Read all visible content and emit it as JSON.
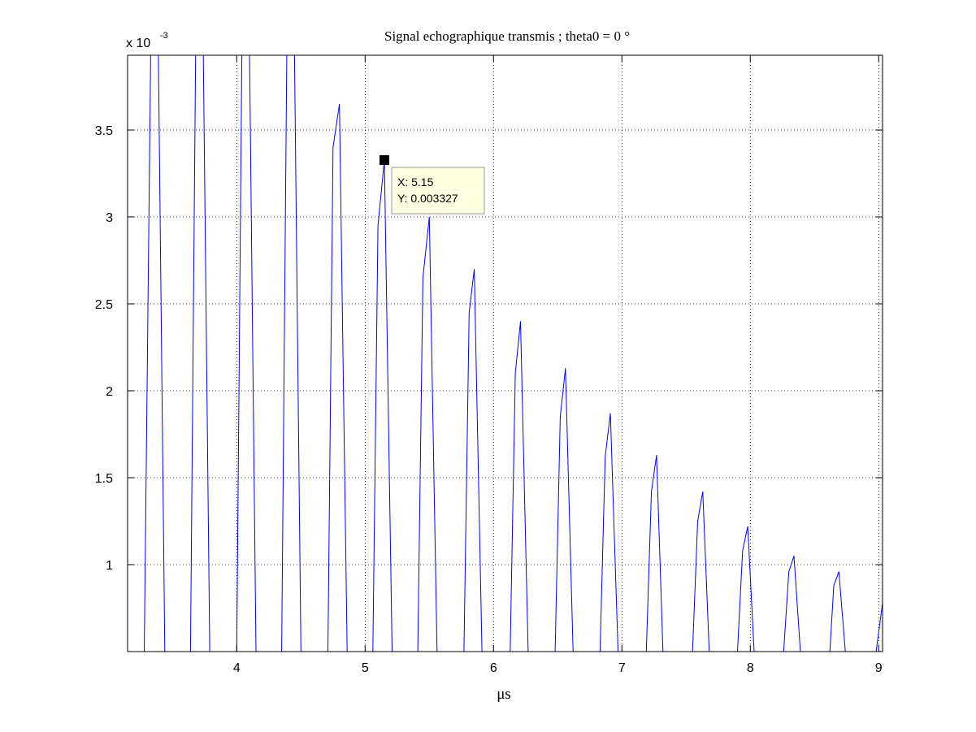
{
  "chart_data": {
    "type": "line",
    "title": "Signal echographique transmis  ; theta0 = 0 °",
    "xlabel": "μs",
    "ylabel": "",
    "y_exponent_label": "x 10",
    "y_exponent_power": "-3",
    "xlim": [
      3.15,
      9.03
    ],
    "ylim": [
      0.5,
      3.93
    ],
    "y_scale_note": "y values in units of 10^-3",
    "xticks": [
      4,
      5,
      6,
      7,
      8,
      9
    ],
    "xtick_labels": [
      "4",
      "5",
      "6",
      "7",
      "8",
      "9"
    ],
    "yticks": [
      1,
      1.5,
      2,
      2.5,
      3,
      3.5
    ],
    "ytick_labels": [
      "1",
      "1.5",
      "2",
      "2.5",
      "3",
      "3.5"
    ],
    "grid": true,
    "series": [
      {
        "color": "#0000ff",
        "x": [
          3.28,
          3.33,
          3.39,
          3.44,
          3.64,
          3.68,
          3.74,
          3.79,
          4.0,
          4.04,
          4.1,
          4.15,
          4.35,
          4.39,
          4.45,
          4.5,
          4.71,
          4.75,
          4.8,
          4.86,
          5.06,
          5.1,
          5.15,
          5.21,
          5.41,
          5.45,
          5.5,
          5.56,
          5.77,
          5.81,
          5.85,
          5.91,
          6.13,
          6.17,
          6.21,
          6.27,
          6.48,
          6.52,
          6.56,
          6.62,
          6.83,
          6.87,
          6.91,
          6.97,
          7.19,
          7.23,
          7.27,
          7.32,
          7.55,
          7.59,
          7.63,
          7.68,
          7.9,
          7.94,
          7.98,
          8.03,
          8.26,
          8.3,
          8.34,
          8.39,
          8.62,
          8.65,
          8.69,
          8.74,
          8.98,
          9.03
        ],
        "y": [
          0.5,
          3.93,
          3.93,
          0.5,
          0.5,
          3.93,
          3.93,
          0.5,
          0.5,
          3.93,
          3.93,
          0.5,
          0.5,
          3.93,
          3.93,
          0.5,
          0.5,
          3.4,
          3.65,
          0.5,
          0.5,
          2.95,
          3.327,
          0.5,
          0.5,
          2.65,
          3.0,
          0.5,
          0.5,
          2.45,
          2.7,
          0.5,
          0.5,
          2.1,
          2.4,
          0.5,
          0.5,
          1.85,
          2.13,
          0.5,
          0.5,
          1.62,
          1.87,
          0.5,
          0.5,
          1.42,
          1.63,
          0.5,
          0.5,
          1.25,
          1.42,
          0.5,
          0.5,
          1.08,
          1.22,
          0.5,
          0.5,
          0.96,
          1.05,
          0.5,
          0.5,
          0.88,
          0.96,
          0.5,
          0.5,
          0.78
        ]
      }
    ],
    "datatip": {
      "x": 5.15,
      "y": 3.327,
      "x_label": "X: 5.15",
      "y_label": "Y: 0.003327",
      "bg_color": "#ffffe1",
      "border_color": "#999999"
    }
  }
}
